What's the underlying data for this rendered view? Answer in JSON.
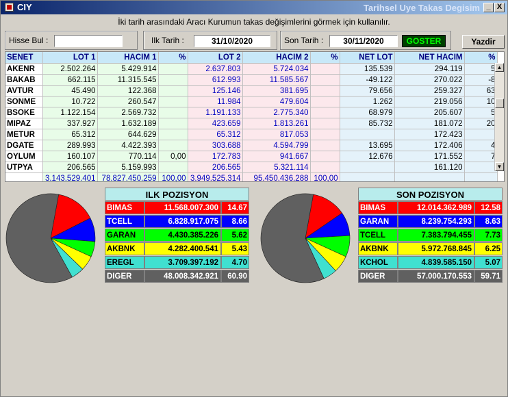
{
  "window": {
    "title": "CIY",
    "subtitle": "Tarihsel Uye Takas Degisim",
    "min_label": "_",
    "close_label": "X"
  },
  "info_text": "İki tarih arasındaki  Aracı Kurumun takas değişimlerini görmek için kullanılır.",
  "filters": {
    "hisse_label": "Hisse Bul :",
    "hisse_value": "",
    "ilk_label": "Ilk Tarih :",
    "ilk_value": "31/10/2020",
    "son_label": "Son Tarih :",
    "son_value": "30/11/2020",
    "goster_label": "GOSTER",
    "yazdir_label": "Yazdir"
  },
  "table": {
    "headers": [
      "SENET",
      "LOT 1",
      "HACIM 1",
      "%",
      "LOT 2",
      "HACIM 2",
      "%",
      "NET LOT",
      "NET HACIM",
      "%"
    ],
    "rows": [
      [
        "AKENR",
        "2.502.264",
        "5.429.914",
        "",
        "2.637.803",
        "5.724.034",
        "",
        "135.539",
        "294.119",
        "5"
      ],
      [
        "BAKAB",
        "662.115",
        "11.315.545",
        "",
        "612.993",
        "11.585.567",
        "",
        "-49.122",
        "270.022",
        "-8"
      ],
      [
        "AVTUR",
        "45.490",
        "122.368",
        "",
        "125.146",
        "381.695",
        "",
        "79.656",
        "259.327",
        "63"
      ],
      [
        "SONME",
        "10.722",
        "260.547",
        "",
        "11.984",
        "479.604",
        "",
        "1.262",
        "219.056",
        "10"
      ],
      [
        "BSOKE",
        "1.122.154",
        "2.569.732",
        "",
        "1.191.133",
        "2.775.340",
        "",
        "68.979",
        "205.607",
        "5"
      ],
      [
        "MIPAZ",
        "337.927",
        "1.632.189",
        "",
        "423.659",
        "1.813.261",
        "",
        "85.732",
        "181.072",
        "20"
      ],
      [
        "METUR",
        "65.312",
        "644.629",
        "",
        "65.312",
        "817.053",
        "",
        "",
        "172.423",
        ""
      ],
      [
        "DGATE",
        "289.993",
        "4.422.393",
        "",
        "303.688",
        "4.594.799",
        "",
        "13.695",
        "172.406",
        "4"
      ],
      [
        "OYLUM",
        "160.107",
        "770.114",
        "0,00",
        "172.783",
        "941.667",
        "",
        "12.676",
        "171.552",
        "7"
      ],
      [
        "UTPYA",
        "206.565",
        "5.159.993",
        "",
        "206.565",
        "5.321.114",
        "",
        "",
        "161.120",
        ""
      ]
    ],
    "totals": [
      "",
      "3.143.529.401",
      "78.827.450.259",
      "100,00",
      "3.949.525.314",
      "95.450.436.288",
      "100,00",
      "",
      "",
      ""
    ]
  },
  "ilk_pozisyon": {
    "title": "ILK POZISYON",
    "rows": [
      {
        "name": "BIMAS",
        "value": "11.568.007.300",
        "pct": "14.67",
        "color": "#ff0000",
        "text": "#ffffff"
      },
      {
        "name": "TCELL",
        "value": "6.828.917.075",
        "pct": "8.66",
        "color": "#0000ff",
        "text": "#ffffff"
      },
      {
        "name": "GARAN",
        "value": "4.430.385.226",
        "pct": "5.62",
        "color": "#00ff00",
        "text": "#000000"
      },
      {
        "name": "AKBNK",
        "value": "4.282.400.541",
        "pct": "5.43",
        "color": "#ffff00",
        "text": "#000000"
      },
      {
        "name": "EREGL",
        "value": "3.709.397.192",
        "pct": "4.70",
        "color": "#40e0d0",
        "text": "#000000"
      },
      {
        "name": "DIGER",
        "value": "48.008.342.921",
        "pct": "60.90",
        "color": "#606060",
        "text": "#ffffff"
      }
    ]
  },
  "son_pozisyon": {
    "title": "SON POZISYON",
    "rows": [
      {
        "name": "BIMAS",
        "value": "12.014.362.989",
        "pct": "12.58",
        "color": "#ff0000",
        "text": "#ffffff"
      },
      {
        "name": "GARAN",
        "value": "8.239.754.293",
        "pct": "8.63",
        "color": "#0000ff",
        "text": "#ffffff"
      },
      {
        "name": "TCELL",
        "value": "7.383.794.455",
        "pct": "7.73",
        "color": "#00ff00",
        "text": "#000000"
      },
      {
        "name": "AKBNK",
        "value": "5.972.768.845",
        "pct": "6.25",
        "color": "#ffff00",
        "text": "#000000"
      },
      {
        "name": "KCHOL",
        "value": "4.839.585.150",
        "pct": "5.07",
        "color": "#40e0d0",
        "text": "#000000"
      },
      {
        "name": "DIGER",
        "value": "57.000.170.553",
        "pct": "59.71",
        "color": "#606060",
        "text": "#ffffff"
      }
    ]
  }
}
